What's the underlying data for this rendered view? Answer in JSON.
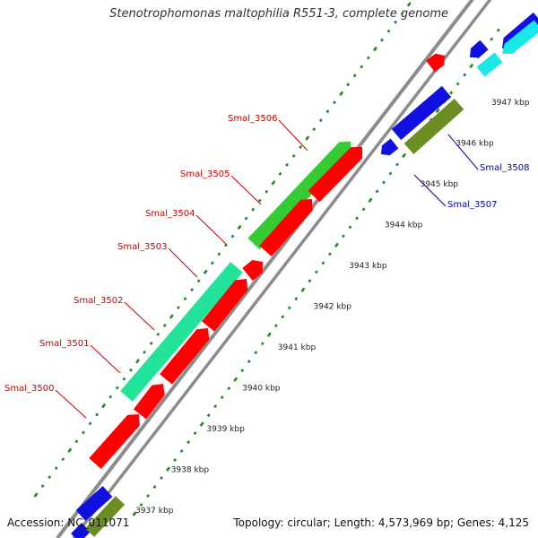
{
  "title": "Stenotrophomonas maltophilia R551-3, complete genome",
  "footer": {
    "accession": "Accession: NC_011071",
    "summary": "Topology: circular; Length: 4,573,969 bp; Genes: 4,125"
  },
  "colors": {
    "backbone": "#8c8c8c",
    "tick": "#1f8a1f",
    "red": "#ff0000",
    "green": "#33cc33",
    "teal": "#22e39a",
    "blue": "#1010e0",
    "cyan": "#18e8e8",
    "olive": "#6b8e23",
    "label_red": "#cc0000",
    "label_blue": "#0000bb"
  },
  "scale": {
    "ticks": [
      {
        "label": "3937 kbp"
      },
      {
        "label": "3938 kbp"
      },
      {
        "label": "3939 kbp"
      },
      {
        "label": "3940 kbp"
      },
      {
        "label": "3941 kbp"
      },
      {
        "label": "3942 kbp"
      },
      {
        "label": "3943 kbp"
      },
      {
        "label": "3944 kbp"
      },
      {
        "label": "3945 kbp"
      },
      {
        "label": "3946 kbp"
      },
      {
        "label": "3947 kbp"
      }
    ]
  },
  "gene_labels": [
    {
      "name": "Smal_3500",
      "color": "label_red"
    },
    {
      "name": "Smal_3501",
      "color": "label_red"
    },
    {
      "name": "Smal_3502",
      "color": "label_red"
    },
    {
      "name": "Smal_3503",
      "color": "label_red"
    },
    {
      "name": "Smal_3504",
      "color": "label_red"
    },
    {
      "name": "Smal_3505",
      "color": "label_red"
    },
    {
      "name": "Smal_3506",
      "color": "label_red"
    },
    {
      "name": "Smal_3507",
      "color": "label_blue"
    },
    {
      "name": "Smal_3508",
      "color": "label_blue"
    }
  ]
}
